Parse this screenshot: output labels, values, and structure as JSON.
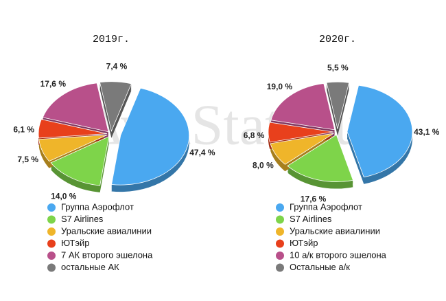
{
  "watermark": "AviaStat.Ru",
  "chart_data": [
    {
      "type": "pie",
      "title": "2019г.",
      "categories": [
        "Группа Аэрофлот",
        "S7 Airlines",
        "Уральские авиалинии",
        "ЮТэйр",
        "7 АК второго эшелона",
        "остальные АК"
      ],
      "values": [
        47.4,
        14.0,
        7.5,
        6.1,
        17.6,
        7.4
      ],
      "value_labels": [
        "47,4 %",
        "14,0 %",
        "7,5 %",
        "6,1 %",
        "17,6 %",
        "7,4 %"
      ],
      "colors": [
        "#4aa8f0",
        "#7ed44a",
        "#efb52a",
        "#e8401c",
        "#b8508a",
        "#7a7a7a"
      ]
    },
    {
      "type": "pie",
      "title": "2020г.",
      "categories": [
        "Группа Аэрофлот",
        "S7 Airlines",
        "Уральские авиалинии",
        "ЮТэйр",
        "10 а/к второго эшелона",
        "Остальные а/к"
      ],
      "values": [
        43.1,
        17.6,
        8.0,
        6.8,
        19.0,
        5.5
      ],
      "value_labels": [
        "43,1 %",
        "17,6 %",
        "8,0 %",
        "6,8 %",
        "19,0 %",
        "5,5 %"
      ],
      "colors": [
        "#4aa8f0",
        "#7ed44a",
        "#efb52a",
        "#e8401c",
        "#b8508a",
        "#7a7a7a"
      ]
    }
  ]
}
